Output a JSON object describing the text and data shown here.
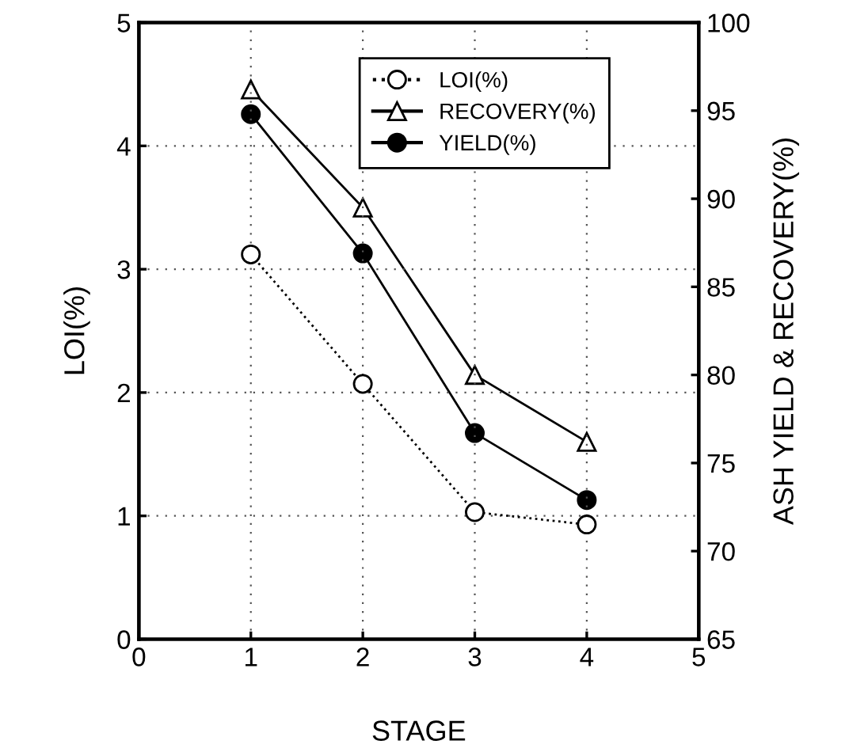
{
  "chart_data": {
    "type": "line",
    "xlabel": "STAGE",
    "ylabel": "LOI(%)",
    "y2label": "ASH YIELD & RECOVERY(%)",
    "x": [
      1,
      2,
      3,
      4
    ],
    "series": [
      {
        "name": "LOI(%)",
        "color": "#000000",
        "values": [
          3.12,
          2.07,
          1.03,
          0.93
        ],
        "marker": "circle",
        "line_style": "dotted"
      },
      {
        "name": "RECOVERY(%)",
        "color": "#000000",
        "values": [
          96.2,
          89.5,
          80.0,
          76.2
        ],
        "marker": "triangle",
        "line_style": "solid",
        "axis": "y2"
      },
      {
        "name": "YIELD(%)",
        "color": "#000000",
        "values": [
          94.8,
          86.9,
          76.7,
          72.9
        ],
        "marker": "circle",
        "line_style": "solid",
        "axis": "y2"
      }
    ],
    "xlim": [
      0,
      5
    ],
    "xticks": [
      0,
      1,
      2,
      3,
      4,
      5
    ],
    "ylim": [
      0,
      5
    ],
    "yticks": [
      0,
      1,
      2,
      3,
      4,
      5
    ],
    "y2lim": [
      65,
      100
    ],
    "y2ticks": [
      65,
      70,
      75,
      80,
      85,
      90,
      95,
      100
    ],
    "grid": true,
    "legend": "top right"
  }
}
